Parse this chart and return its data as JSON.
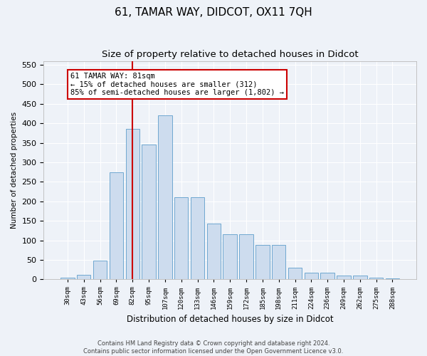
{
  "title": "61, TAMAR WAY, DIDCOT, OX11 7QH",
  "subtitle": "Size of property relative to detached houses in Didcot",
  "xlabel": "Distribution of detached houses by size in Didcot",
  "ylabel": "Number of detached properties",
  "footer_line1": "Contains HM Land Registry data © Crown copyright and database right 2024.",
  "footer_line2": "Contains public sector information licensed under the Open Government Licence v3.0.",
  "bar_labels": [
    "30sqm",
    "43sqm",
    "56sqm",
    "69sqm",
    "82sqm",
    "95sqm",
    "107sqm",
    "120sqm",
    "133sqm",
    "146sqm",
    "159sqm",
    "172sqm",
    "185sqm",
    "198sqm",
    "211sqm",
    "224sqm",
    "236sqm",
    "249sqm",
    "262sqm",
    "275sqm",
    "288sqm"
  ],
  "bar_values": [
    5,
    12,
    48,
    275,
    385,
    345,
    420,
    210,
    210,
    143,
    115,
    115,
    88,
    88,
    30,
    18,
    18,
    10,
    10,
    4,
    3
  ],
  "bar_color": "#cddcee",
  "bar_edge_color": "#6fa8d0",
  "vline_index": 4,
  "vline_color": "#cc0000",
  "annotation_line1": "61 TAMAR WAY: 81sqm",
  "annotation_line2": "← 15% of detached houses are smaller (312)",
  "annotation_line3": "85% of semi-detached houses are larger (1,802) →",
  "ylim": [
    0,
    560
  ],
  "yticks": [
    0,
    50,
    100,
    150,
    200,
    250,
    300,
    350,
    400,
    450,
    500,
    550
  ],
  "background_color": "#eef2f8",
  "grid_color": "#ffffff",
  "title_fontsize": 11,
  "subtitle_fontsize": 9.5
}
